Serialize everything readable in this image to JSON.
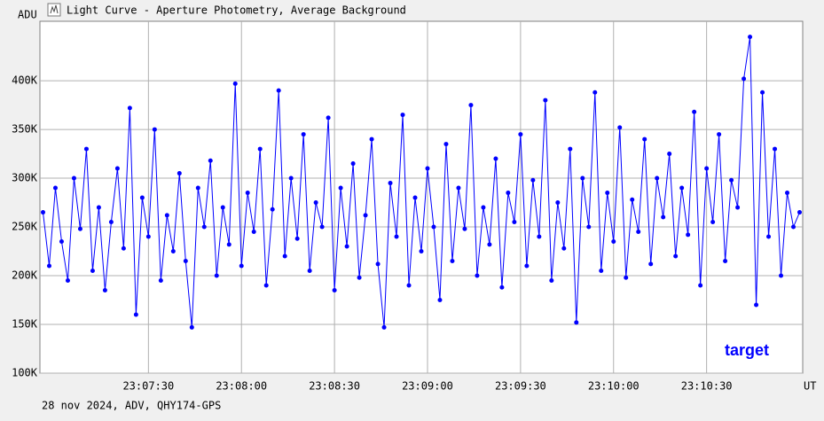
{
  "chart_data": {
    "type": "line",
    "title": "Light Curve - Aperture Photometry, Average Background",
    "y_label": "ADU",
    "x_label": "UT",
    "footer": "28 nov 2024, ADV, QHY174-GPS",
    "annotation": "target",
    "x": [
      "23:06:56",
      "23:06:58",
      "23:07:00",
      "23:07:02",
      "23:07:04",
      "23:07:06",
      "23:07:08",
      "23:07:10",
      "23:07:12",
      "23:07:14",
      "23:07:16",
      "23:07:18",
      "23:07:20",
      "23:07:22",
      "23:07:24",
      "23:07:26",
      "23:07:28",
      "23:07:30",
      "23:07:32",
      "23:07:34",
      "23:07:36",
      "23:07:38",
      "23:07:40",
      "23:07:42",
      "23:07:44",
      "23:07:46",
      "23:07:48",
      "23:07:50",
      "23:07:52",
      "23:07:54",
      "23:07:56",
      "23:07:58",
      "23:08:00",
      "23:08:02",
      "23:08:04",
      "23:08:06",
      "23:08:08",
      "23:08:10",
      "23:08:12",
      "23:08:14",
      "23:08:16",
      "23:08:18",
      "23:08:20",
      "23:08:22",
      "23:08:24",
      "23:08:26",
      "23:08:28",
      "23:08:30",
      "23:08:32",
      "23:08:34",
      "23:08:36",
      "23:08:38",
      "23:08:40",
      "23:08:42",
      "23:08:44",
      "23:08:46",
      "23:08:48",
      "23:08:50",
      "23:08:52",
      "23:08:54",
      "23:08:56",
      "23:08:58",
      "23:09:00",
      "23:09:02",
      "23:09:04",
      "23:09:06",
      "23:09:08",
      "23:09:10",
      "23:09:12",
      "23:09:14",
      "23:09:16",
      "23:09:18",
      "23:09:20",
      "23:09:22",
      "23:09:24",
      "23:09:26",
      "23:09:28",
      "23:09:30",
      "23:09:32",
      "23:09:34",
      "23:09:36",
      "23:09:38",
      "23:09:40",
      "23:09:42",
      "23:09:44",
      "23:09:46",
      "23:09:48",
      "23:09:50",
      "23:09:52",
      "23:09:54",
      "23:09:56",
      "23:09:58",
      "23:10:00",
      "23:10:02",
      "23:10:04",
      "23:10:06",
      "23:10:08",
      "23:10:10",
      "23:10:12",
      "23:10:14",
      "23:10:16",
      "23:10:18",
      "23:10:20",
      "23:10:22",
      "23:10:24",
      "23:10:26",
      "23:10:28",
      "23:10:30",
      "23:10:32",
      "23:10:34",
      "23:10:36",
      "23:10:38",
      "23:10:40",
      "23:10:42",
      "23:10:44",
      "23:10:46",
      "23:10:48",
      "23:10:50",
      "23:10:52",
      "23:10:54",
      "23:10:56",
      "23:10:58",
      "23:11:00"
    ],
    "series": [
      {
        "name": "target",
        "color": "#0000ff",
        "values": [
          265000,
          210000,
          290000,
          235000,
          195000,
          300000,
          248000,
          330000,
          205000,
          270000,
          185000,
          255000,
          310000,
          228000,
          372000,
          160000,
          280000,
          240000,
          350000,
          195000,
          262000,
          225000,
          305000,
          215000,
          147000,
          290000,
          250000,
          318000,
          200000,
          270000,
          232000,
          397000,
          210000,
          285000,
          245000,
          330000,
          190000,
          268000,
          390000,
          220000,
          300000,
          238000,
          345000,
          205000,
          275000,
          250000,
          362000,
          185000,
          290000,
          230000,
          315000,
          198000,
          262000,
          340000,
          212000,
          147000,
          295000,
          240000,
          365000,
          190000,
          280000,
          225000,
          310000,
          250000,
          175000,
          335000,
          215000,
          290000,
          248000,
          375000,
          200000,
          270000,
          232000,
          320000,
          188000,
          285000,
          255000,
          345000,
          210000,
          298000,
          240000,
          380000,
          195000,
          275000,
          228000,
          330000,
          152000,
          300000,
          250000,
          388000,
          205000,
          285000,
          235000,
          352000,
          198000,
          278000,
          245000,
          340000,
          212000,
          300000,
          260000,
          325000,
          220000,
          290000,
          242000,
          368000,
          190000,
          310000,
          255000,
          345000,
          215000,
          298000,
          270000,
          402000,
          445000,
          170000,
          388000,
          240000,
          330000,
          200000,
          285000,
          250000,
          265000
        ]
      }
    ],
    "xlim": [
      "23:06:55",
      "23:11:01"
    ],
    "xticks": [
      "23:07:30",
      "23:08:00",
      "23:08:30",
      "23:09:00",
      "23:09:30",
      "23:10:00",
      "23:10:30"
    ],
    "ylim": [
      100000,
      461000
    ],
    "yticks": [
      {
        "value": 100000,
        "label": "100K"
      },
      {
        "value": 150000,
        "label": "150K"
      },
      {
        "value": 200000,
        "label": "200K"
      },
      {
        "value": 250000,
        "label": "250K"
      },
      {
        "value": 300000,
        "label": "300K"
      },
      {
        "value": 350000,
        "label": "350K"
      },
      {
        "value": 400000,
        "label": "400K"
      }
    ],
    "grid": true
  }
}
